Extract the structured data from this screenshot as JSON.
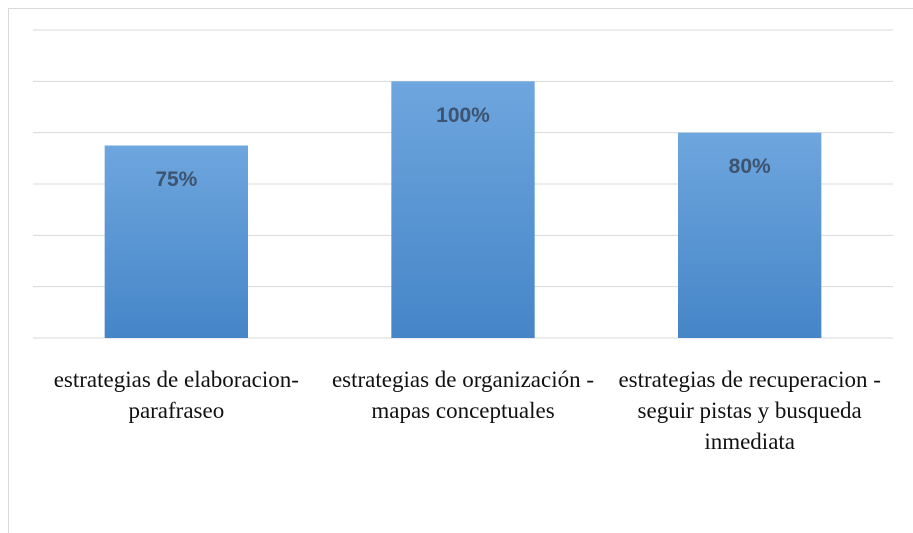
{
  "chart_data": {
    "type": "bar",
    "categories": [
      "estrategias de elaboracion-parafraseo",
      "estrategias de organización - mapas conceptuales",
      "estrategias de recuperacion - seguir pistas y busqueda inmediata"
    ],
    "values": [
      75,
      100,
      80
    ],
    "value_labels": [
      "75%",
      "100%",
      "80%"
    ],
    "color": "#5b9bd5",
    "ylim": [
      0,
      120
    ],
    "yticks": [
      0,
      20,
      40,
      60,
      80,
      100,
      120
    ],
    "grid": true
  }
}
